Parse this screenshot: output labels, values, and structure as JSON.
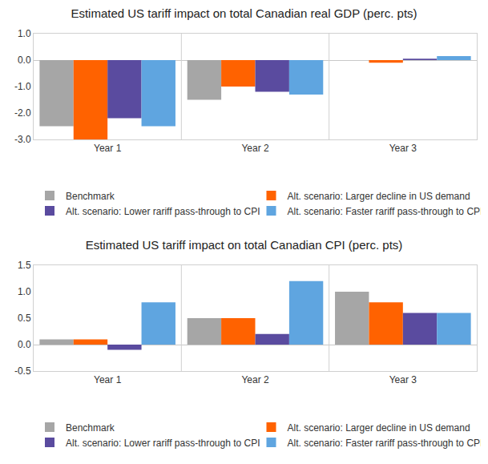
{
  "chart_data": [
    {
      "type": "bar",
      "title": "Estimated US tariff impact on total Canadian real GDP (perc. pts)",
      "categories": [
        "Year 1",
        "Year 2",
        "Year 3"
      ],
      "series": [
        {
          "name": "Benchmark",
          "color": "#a6a6a6",
          "values": [
            -2.5,
            -1.5,
            0.0
          ]
        },
        {
          "name": "Alt. scenario: Larger decline in US demand",
          "color": "#ff6200",
          "values": [
            -3.0,
            -1.0,
            -0.1
          ]
        },
        {
          "name": "Alt. scenario: Lower rariff pass-through to CPI",
          "color": "#5a4b9f",
          "values": [
            -2.2,
            -1.2,
            0.05
          ]
        },
        {
          "name": "Alt. scenario: Faster rariff pass-through to CPI",
          "color": "#5fa5e0",
          "values": [
            -2.5,
            -1.3,
            0.15
          ]
        }
      ],
      "ylim": [
        -3,
        1
      ],
      "yticks": [
        {
          "value": -3,
          "label": "-3.0"
        },
        {
          "value": -2,
          "label": "-2.0"
        },
        {
          "value": -1,
          "label": "-1.0"
        },
        {
          "value": 0,
          "label": "0.0"
        },
        {
          "value": 1,
          "label": "1.0"
        }
      ],
      "grid": false,
      "legend": "bottom"
    },
    {
      "type": "bar",
      "title": "Estimated US tariff impact on total Canadian CPI (perc. pts)",
      "categories": [
        "Year 1",
        "Year 2",
        "Year 3"
      ],
      "series": [
        {
          "name": "Benchmark",
          "color": "#a6a6a6",
          "values": [
            0.1,
            0.5,
            1.0
          ]
        },
        {
          "name": "Alt. scenario: Larger decline in US demand",
          "color": "#ff6200",
          "values": [
            0.1,
            0.5,
            0.8
          ]
        },
        {
          "name": "Alt. scenario: Lower rariff pass-through to CPI",
          "color": "#5a4b9f",
          "values": [
            -0.1,
            0.2,
            0.6
          ]
        },
        {
          "name": "Alt. scenario: Faster rariff pass-through to CPI",
          "color": "#5fa5e0",
          "values": [
            0.8,
            1.2,
            0.6
          ]
        }
      ],
      "ylim": [
        -0.5,
        1.5
      ],
      "yticks": [
        -0.5,
        {
          "value": 0,
          "label": "0.0"
        },
        0.5,
        {
          "value": 1,
          "label": "1.0"
        },
        1.5
      ],
      "grid": false,
      "legend": "bottom"
    }
  ]
}
